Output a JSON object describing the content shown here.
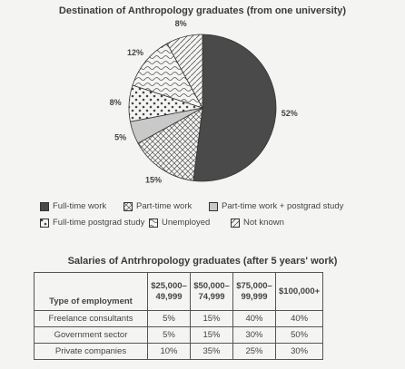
{
  "chart_data": [
    {
      "type": "pie",
      "title": "Destination of Anthropology graduates (from one university)",
      "categories": [
        "Full-time work",
        "Part-time work",
        "Part-time work + postgrad study",
        "Full-time postgrad study",
        "Unemployed",
        "Not known"
      ],
      "values": [
        52,
        15,
        5,
        8,
        12,
        8
      ],
      "value_labels": [
        "52%",
        "15%",
        "5%",
        "8%",
        "12%",
        "8%"
      ],
      "patterns": [
        "solid-dark",
        "crosshatch",
        "light-grey",
        "dots",
        "wavy",
        "diagonal"
      ],
      "legend_position": "bottom"
    },
    {
      "type": "table",
      "title": "Salaries of Antrhropology graduates (after 5 years' work)",
      "header": [
        "Type of employment",
        "$25,000–\n49,999",
        "$50,000–\n74,999",
        "$75,000–\n99,999",
        "$100,000+"
      ],
      "rows": [
        [
          "Freelance consultants",
          "5%",
          "15%",
          "40%",
          "40%"
        ],
        [
          "Government sector",
          "5%",
          "15%",
          "30%",
          "50%"
        ],
        [
          "Private companies",
          "10%",
          "35%",
          "25%",
          "30%"
        ]
      ]
    }
  ],
  "colors": {
    "solid": "#4a4a4a",
    "pattern": "#555555",
    "background": "#f4f4f2",
    "light": "#c9c9c9"
  }
}
